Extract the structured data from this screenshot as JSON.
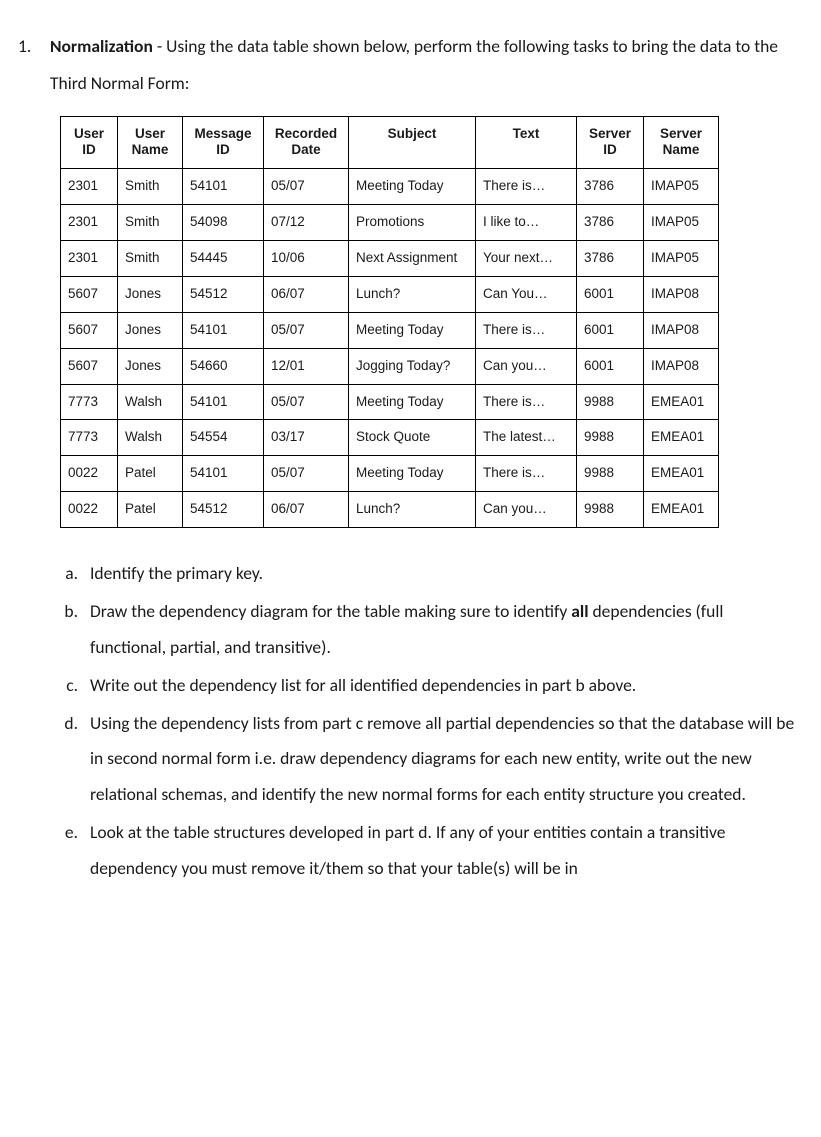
{
  "question": {
    "number": "1.",
    "title": "Normalization",
    "intro": " - Using the data table shown below, perform the following tasks to bring the data to the Third Normal Form:"
  },
  "table": {
    "columns": [
      "User ID",
      "User Name",
      "Message ID",
      "Recorded Date",
      "Subject",
      "Text",
      "Server ID",
      "Server Name"
    ],
    "rows": [
      [
        "2301",
        "Smith",
        "54101",
        "05/07",
        "Meeting Today",
        "There is…",
        "3786",
        "IMAP05"
      ],
      [
        "2301",
        "Smith",
        "54098",
        "07/12",
        "Promotions",
        "I like to…",
        "3786",
        "IMAP05"
      ],
      [
        "2301",
        "Smith",
        "54445",
        "10/06",
        "Next Assignment",
        "Your next…",
        "3786",
        "IMAP05"
      ],
      [
        "5607",
        "Jones",
        "54512",
        "06/07",
        "Lunch?",
        "Can You…",
        "6001",
        "IMAP08"
      ],
      [
        "5607",
        "Jones",
        "54101",
        "05/07",
        "Meeting Today",
        "There is…",
        "6001",
        "IMAP08"
      ],
      [
        "5607",
        "Jones",
        "54660",
        "12/01",
        "Jogging Today?",
        "Can you…",
        "6001",
        "IMAP08"
      ],
      [
        "7773",
        "Walsh",
        "54101",
        "05/07",
        "Meeting Today",
        "There is…",
        "9988",
        "EMEA01"
      ],
      [
        "7773",
        "Walsh",
        "54554",
        "03/17",
        "Stock Quote",
        "The latest…",
        "9988",
        "EMEA01"
      ],
      [
        "0022",
        "Patel",
        "54101",
        "05/07",
        "Meeting Today",
        "There is…",
        "9988",
        "EMEA01"
      ],
      [
        "0022",
        "Patel",
        "54512",
        "06/07",
        "Lunch?",
        "Can you…",
        "9988",
        "EMEA01"
      ]
    ]
  },
  "sub": {
    "a": "Identify the primary key.",
    "b_pre": "Draw the dependency diagram for the table making sure to identify ",
    "b_bold": "all",
    "b_post": " dependencies (full functional, partial, and transitive).",
    "c": "Write out the dependency list for all identified dependencies in part b above.",
    "d": "Using the dependency lists from part c remove all partial dependencies so that the database will be in second normal form i.e. draw dependency diagrams for each new entity, write out the new relational schemas, and identify the new normal forms for each entity structure you created.",
    "e": "Look at the table structures developed in part d.  If any of your entities contain a transitive dependency you must remove it/them so that your table(s) will be in"
  }
}
